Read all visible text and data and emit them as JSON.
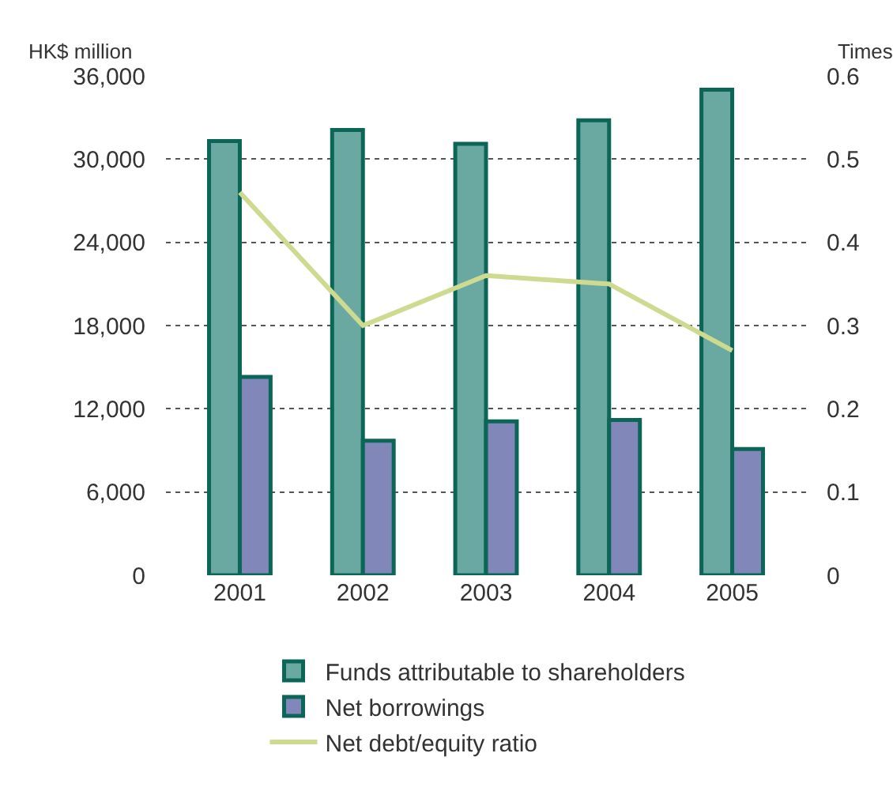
{
  "chart_data": {
    "type": "bar",
    "ylabel": "HK$ million",
    "y2label": "Times",
    "categories": [
      "2001",
      "2002",
      "2003",
      "2004",
      "2005"
    ],
    "series": [
      {
        "name": "Funds attributable to shareholders",
        "color": "#6aa9a1",
        "values": [
          31300,
          32100,
          31100,
          32800,
          35000
        ]
      },
      {
        "name": "Net borrowings",
        "color": "#8187b8",
        "values": [
          14300,
          9700,
          11100,
          11200,
          9100
        ]
      },
      {
        "name": "Net debt/equity ratio",
        "type": "line",
        "axis": "y2",
        "color": "#cdda8f",
        "values": [
          0.46,
          0.3,
          0.36,
          0.35,
          0.27
        ]
      }
    ],
    "ylim": [
      0,
      36000
    ],
    "yticks": [
      {
        "value": 0,
        "label": "0"
      },
      {
        "value": 6000,
        "label": "6,000"
      },
      {
        "value": 12000,
        "label": "12,000"
      },
      {
        "value": 18000,
        "label": "18,000"
      },
      {
        "value": 24000,
        "label": "24,000"
      },
      {
        "value": 30000,
        "label": "30,000"
      },
      {
        "value": 36000,
        "label": "36,000"
      }
    ],
    "y2lim": [
      0,
      0.6
    ],
    "y2ticks": [
      0,
      0.1,
      0.2,
      0.3,
      0.4,
      0.5,
      0.6
    ],
    "grid": "y",
    "legend": "bottom",
    "marker": "none",
    "line_style": "solid"
  }
}
